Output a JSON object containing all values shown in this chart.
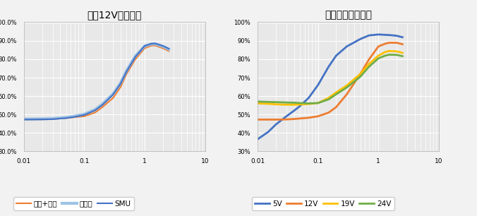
{
  "chart1_title": "加载12V，对比图",
  "chart2_title": "加载不同输入电压",
  "xlim": [
    0.01,
    10
  ],
  "ylim": [
    0.3,
    1.005
  ],
  "chart1_yticks": [
    0.3,
    0.4,
    0.5,
    0.6,
    0.7,
    0.8,
    0.9,
    1.0
  ],
  "chart1_ytick_labels": [
    "30.0%",
    "40.0%",
    "50.0%",
    "60.0%",
    "70.0%",
    "80.0%",
    "90.0%",
    "100.0%"
  ],
  "chart2_ytick_labels": [
    "30%",
    "40%",
    "50%",
    "60%",
    "70%",
    "80%",
    "90%",
    "100%"
  ],
  "background_color": "#f2f2f2",
  "plot_bg_color": "#e8e8e8",
  "grid_color": "#ffffff",
  "c1_series": [
    {
      "label": "电源+负载",
      "color": "#ED7D31",
      "lw": 1.5,
      "x": [
        0.01,
        0.02,
        0.03,
        0.04,
        0.05,
        0.07,
        0.1,
        0.15,
        0.2,
        0.3,
        0.4,
        0.5,
        0.7,
        1.0,
        1.3,
        1.5,
        2.0,
        2.5
      ],
      "y": [
        0.472,
        0.473,
        0.474,
        0.478,
        0.48,
        0.485,
        0.49,
        0.51,
        0.54,
        0.59,
        0.65,
        0.72,
        0.8,
        0.86,
        0.875,
        0.875,
        0.86,
        0.845
      ]
    },
    {
      "label": "多用表",
      "color": "#9DC3E6",
      "lw": 3.0,
      "x": [
        0.01,
        0.02,
        0.03,
        0.04,
        0.05,
        0.07,
        0.1,
        0.15,
        0.2,
        0.3,
        0.4,
        0.5,
        0.7,
        1.0,
        1.3,
        1.5,
        2.0,
        2.5
      ],
      "y": [
        0.475,
        0.476,
        0.478,
        0.481,
        0.484,
        0.491,
        0.501,
        0.526,
        0.557,
        0.612,
        0.672,
        0.737,
        0.817,
        0.872,
        0.884,
        0.884,
        0.87,
        0.855
      ]
    },
    {
      "label": "SMU",
      "color": "#4472C4",
      "lw": 1.5,
      "x": [
        0.01,
        0.02,
        0.03,
        0.04,
        0.05,
        0.07,
        0.1,
        0.15,
        0.2,
        0.3,
        0.4,
        0.5,
        0.7,
        1.0,
        1.3,
        1.5,
        2.0,
        2.5
      ],
      "y": [
        0.472,
        0.473,
        0.474,
        0.478,
        0.48,
        0.487,
        0.497,
        0.522,
        0.552,
        0.608,
        0.668,
        0.733,
        0.813,
        0.873,
        0.885,
        0.886,
        0.873,
        0.858
      ]
    }
  ],
  "c2_series": [
    {
      "label": "5V",
      "color": "#4472C4",
      "lw": 2.0,
      "x": [
        0.01,
        0.015,
        0.02,
        0.03,
        0.04,
        0.05,
        0.07,
        0.1,
        0.15,
        0.2,
        0.3,
        0.5,
        0.7,
        1.0,
        1.3,
        1.5,
        2.0,
        2.5
      ],
      "y": [
        0.365,
        0.405,
        0.445,
        0.49,
        0.52,
        0.545,
        0.59,
        0.66,
        0.76,
        0.82,
        0.87,
        0.91,
        0.93,
        0.935,
        0.933,
        0.932,
        0.928,
        0.92
      ]
    },
    {
      "label": "12V",
      "color": "#ED7D31",
      "lw": 2.0,
      "x": [
        0.01,
        0.015,
        0.02,
        0.03,
        0.04,
        0.05,
        0.07,
        0.1,
        0.15,
        0.2,
        0.3,
        0.5,
        0.7,
        1.0,
        1.3,
        1.5,
        2.0,
        2.5
      ],
      "y": [
        0.472,
        0.472,
        0.472,
        0.473,
        0.475,
        0.478,
        0.482,
        0.49,
        0.51,
        0.54,
        0.61,
        0.72,
        0.8,
        0.87,
        0.885,
        0.89,
        0.89,
        0.882
      ]
    },
    {
      "label": "19V",
      "color": "#FFC000",
      "lw": 2.0,
      "x": [
        0.01,
        0.015,
        0.02,
        0.03,
        0.04,
        0.05,
        0.07,
        0.1,
        0.15,
        0.2,
        0.3,
        0.5,
        0.7,
        1.0,
        1.3,
        1.5,
        2.0,
        2.5
      ],
      "y": [
        0.56,
        0.558,
        0.555,
        0.553,
        0.553,
        0.554,
        0.557,
        0.562,
        0.59,
        0.62,
        0.658,
        0.72,
        0.775,
        0.82,
        0.84,
        0.845,
        0.843,
        0.835
      ]
    },
    {
      "label": "24V",
      "color": "#70AD47",
      "lw": 2.0,
      "x": [
        0.01,
        0.015,
        0.02,
        0.03,
        0.04,
        0.05,
        0.07,
        0.1,
        0.15,
        0.2,
        0.3,
        0.5,
        0.7,
        1.0,
        1.3,
        1.5,
        2.0,
        2.5
      ],
      "y": [
        0.57,
        0.568,
        0.567,
        0.565,
        0.564,
        0.562,
        0.56,
        0.562,
        0.582,
        0.61,
        0.647,
        0.705,
        0.76,
        0.805,
        0.82,
        0.825,
        0.824,
        0.817
      ]
    }
  ]
}
